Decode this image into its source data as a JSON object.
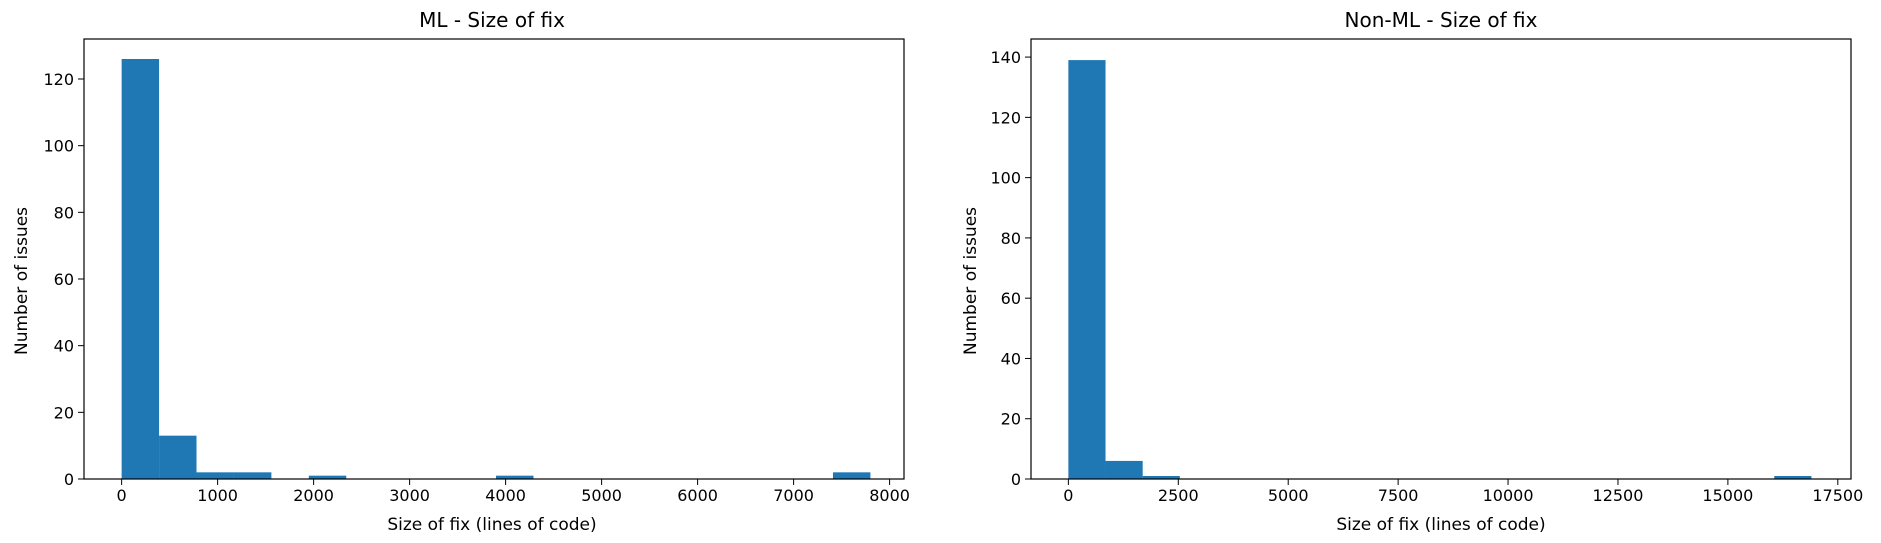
{
  "chart_data": [
    {
      "type": "bar",
      "title": "ML - Size of fix",
      "xlabel": "Size of fix (lines of code)",
      "ylabel": "Number of issues",
      "xlim": [
        -392,
        8150
      ],
      "ylim": [
        0,
        132
      ],
      "xticks": [
        0,
        1000,
        2000,
        3000,
        4000,
        5000,
        6000,
        7000,
        8000
      ],
      "yticks": [
        0,
        20,
        40,
        60,
        80,
        100,
        120
      ],
      "bar_color": "#1f77b4",
      "bins": [
        {
          "x0": 0,
          "x1": 390,
          "value": 126
        },
        {
          "x0": 390,
          "x1": 780,
          "value": 13
        },
        {
          "x0": 780,
          "x1": 1170,
          "value": 2
        },
        {
          "x0": 1170,
          "x1": 1560,
          "value": 2
        },
        {
          "x0": 1950,
          "x1": 2340,
          "value": 1
        },
        {
          "x0": 3900,
          "x1": 4290,
          "value": 1
        },
        {
          "x0": 7410,
          "x1": 7800,
          "value": 2
        }
      ]
    },
    {
      "type": "bar",
      "title": "Non-ML - Size of fix",
      "xlabel": "Size of fix (lines of code)",
      "ylabel": "Number of issues",
      "xlim": [
        -850,
        17800
      ],
      "ylim": [
        0,
        146
      ],
      "xticks": [
        0,
        2500,
        5000,
        7500,
        10000,
        12500,
        15000,
        17500
      ],
      "yticks": [
        0,
        20,
        40,
        60,
        80,
        100,
        120,
        140
      ],
      "bar_color": "#1f77b4",
      "bins": [
        {
          "x0": 0,
          "x1": 845,
          "value": 139
        },
        {
          "x0": 845,
          "x1": 1690,
          "value": 6
        },
        {
          "x0": 1690,
          "x1": 2535,
          "value": 1
        },
        {
          "x0": 16055,
          "x1": 16900,
          "value": 1
        }
      ]
    }
  ]
}
